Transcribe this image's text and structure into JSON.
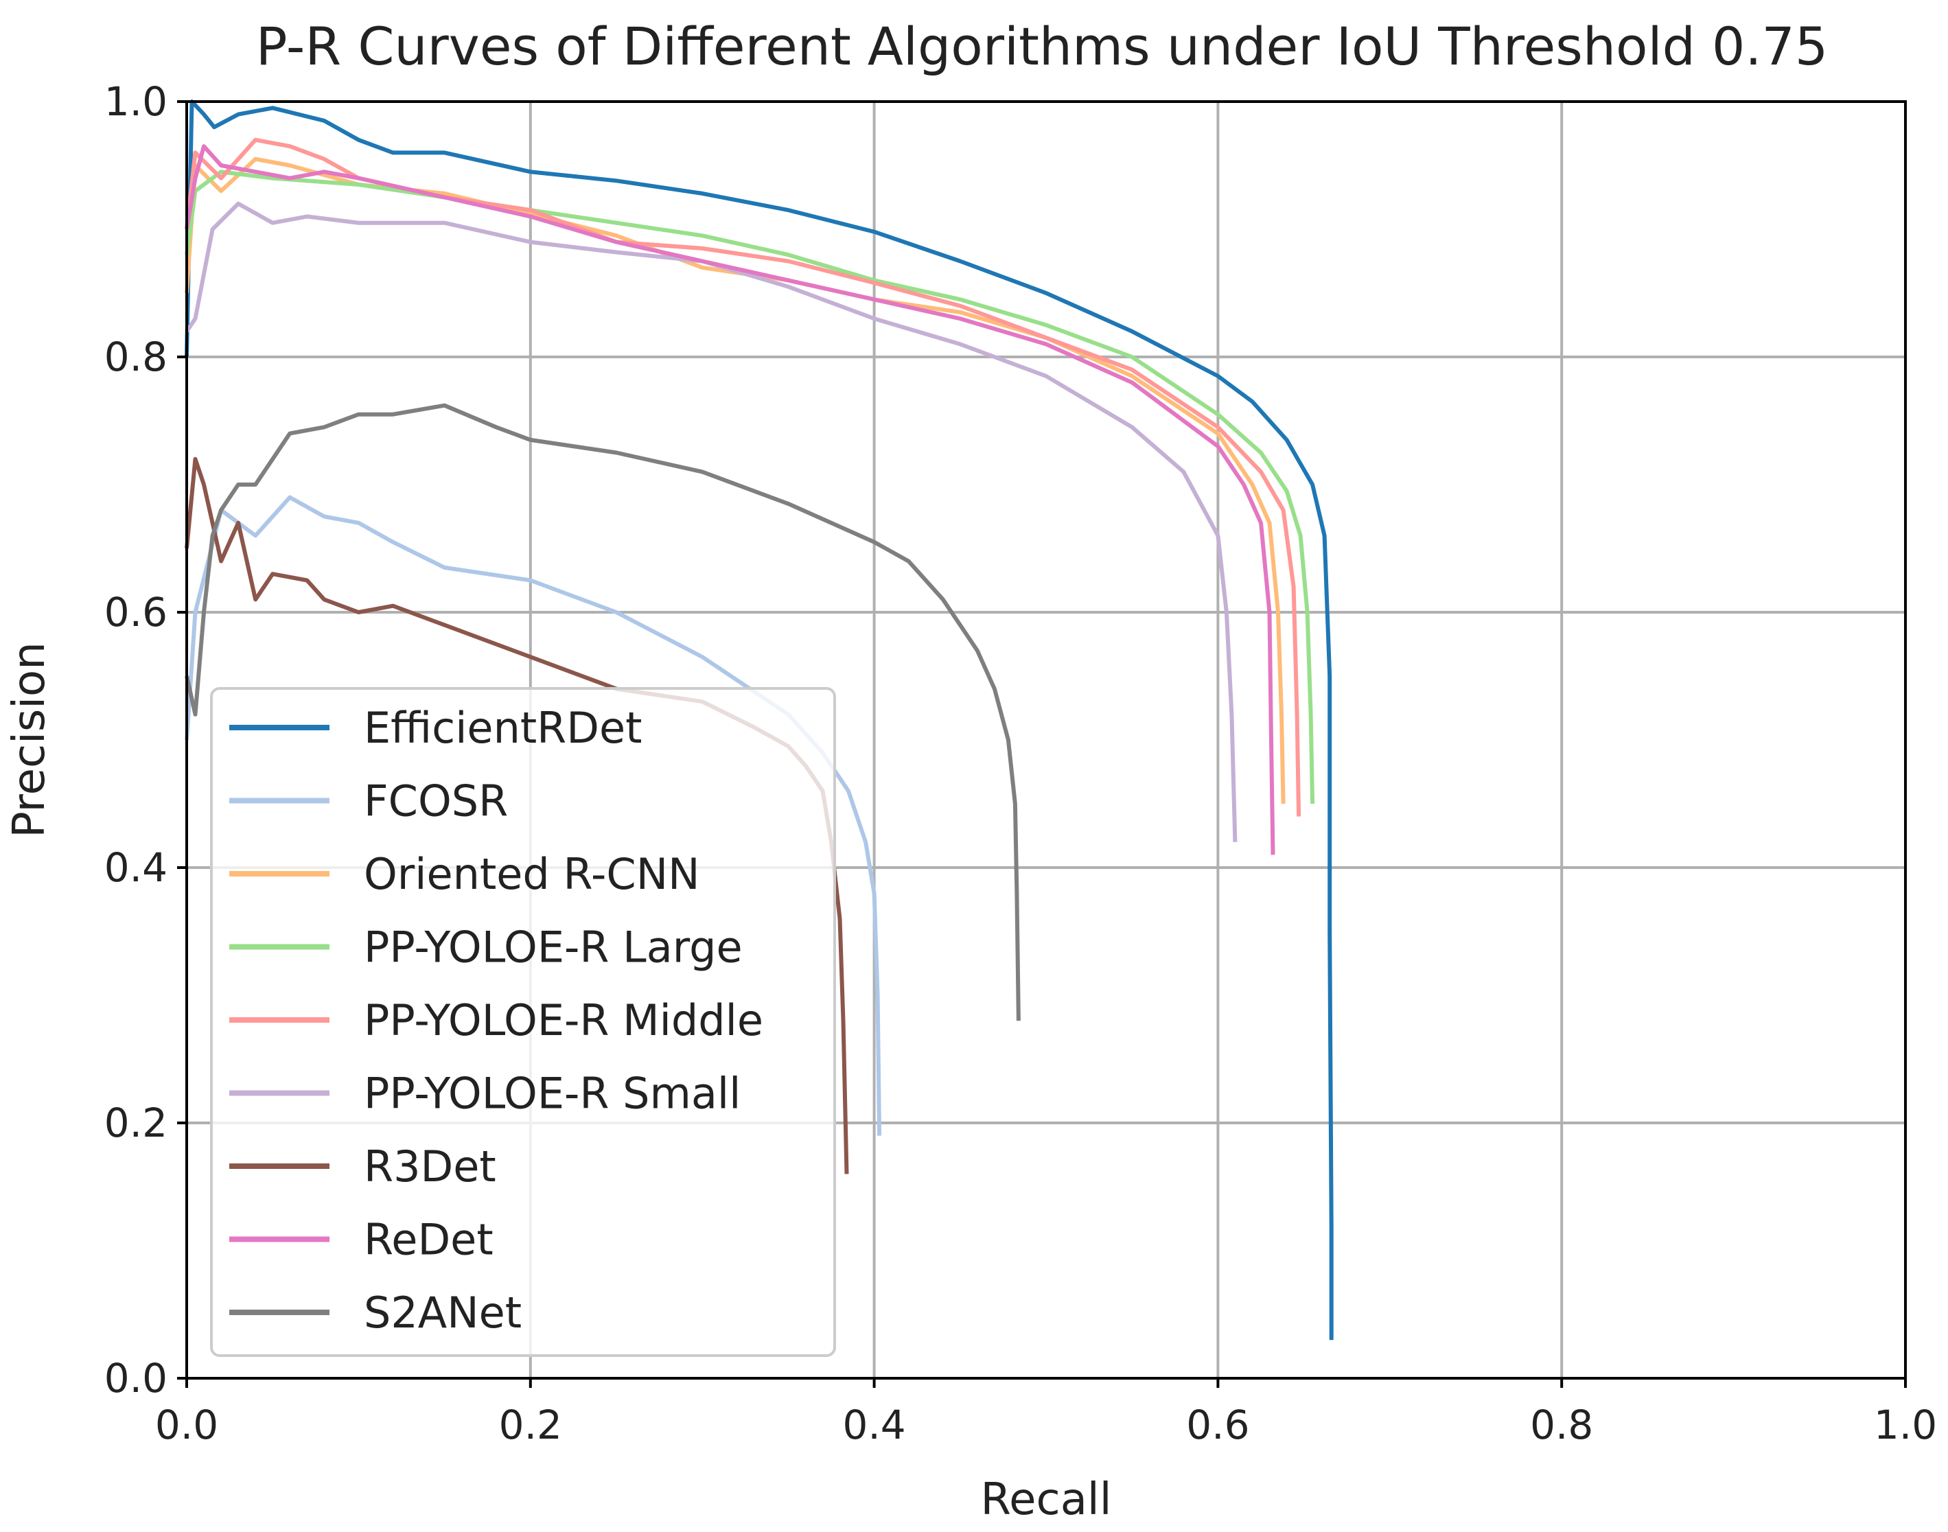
{
  "chart_data": {
    "type": "line",
    "title": "P-R Curves of Different Algorithms under IoU Threshold 0.75",
    "xlabel": "Recall",
    "ylabel": "Precision",
    "xlim": [
      0,
      1
    ],
    "ylim": [
      0,
      1
    ],
    "xticks": [
      "0.0",
      "0.2",
      "0.4",
      "0.6",
      "0.8",
      "1.0"
    ],
    "yticks": [
      "0.0",
      "0.2",
      "0.4",
      "0.6",
      "0.8",
      "1.0"
    ],
    "grid": true,
    "legend_position": "lower-left",
    "series": [
      {
        "name": "EfficientRDet",
        "color": "#1f77b4",
        "points": [
          [
            0.0,
            0.8
          ],
          [
            0.003,
            1.0
          ],
          [
            0.01,
            0.99
          ],
          [
            0.016,
            0.98
          ],
          [
            0.03,
            0.99
          ],
          [
            0.05,
            0.995
          ],
          [
            0.08,
            0.985
          ],
          [
            0.1,
            0.97
          ],
          [
            0.12,
            0.96
          ],
          [
            0.15,
            0.96
          ],
          [
            0.2,
            0.945
          ],
          [
            0.25,
            0.938
          ],
          [
            0.3,
            0.928
          ],
          [
            0.35,
            0.915
          ],
          [
            0.4,
            0.898
          ],
          [
            0.45,
            0.875
          ],
          [
            0.5,
            0.85
          ],
          [
            0.55,
            0.82
          ],
          [
            0.6,
            0.785
          ],
          [
            0.62,
            0.765
          ],
          [
            0.64,
            0.735
          ],
          [
            0.655,
            0.7
          ],
          [
            0.662,
            0.66
          ],
          [
            0.665,
            0.55
          ],
          [
            0.665,
            0.35
          ],
          [
            0.666,
            0.12
          ],
          [
            0.666,
            0.03
          ]
        ]
      },
      {
        "name": "FCOSR",
        "color": "#aec7e8",
        "points": [
          [
            0.0,
            0.5
          ],
          [
            0.005,
            0.6
          ],
          [
            0.02,
            0.68
          ],
          [
            0.04,
            0.66
          ],
          [
            0.06,
            0.69
          ],
          [
            0.08,
            0.675
          ],
          [
            0.1,
            0.67
          ],
          [
            0.12,
            0.655
          ],
          [
            0.15,
            0.635
          ],
          [
            0.2,
            0.625
          ],
          [
            0.25,
            0.6
          ],
          [
            0.3,
            0.565
          ],
          [
            0.35,
            0.52
          ],
          [
            0.37,
            0.49
          ],
          [
            0.385,
            0.46
          ],
          [
            0.395,
            0.42
          ],
          [
            0.4,
            0.38
          ],
          [
            0.402,
            0.3
          ],
          [
            0.403,
            0.19
          ]
        ]
      },
      {
        "name": "Oriented R-CNN",
        "color": "#ffbb78",
        "points": [
          [
            0.0,
            0.85
          ],
          [
            0.005,
            0.95
          ],
          [
            0.02,
            0.93
          ],
          [
            0.04,
            0.955
          ],
          [
            0.06,
            0.95
          ],
          [
            0.1,
            0.935
          ],
          [
            0.15,
            0.928
          ],
          [
            0.2,
            0.912
          ],
          [
            0.25,
            0.895
          ],
          [
            0.3,
            0.87
          ],
          [
            0.35,
            0.86
          ],
          [
            0.4,
            0.845
          ],
          [
            0.45,
            0.835
          ],
          [
            0.5,
            0.815
          ],
          [
            0.55,
            0.785
          ],
          [
            0.6,
            0.74
          ],
          [
            0.62,
            0.7
          ],
          [
            0.63,
            0.67
          ],
          [
            0.635,
            0.6
          ],
          [
            0.637,
            0.52
          ],
          [
            0.638,
            0.45
          ]
        ]
      },
      {
        "name": "PP-YOLOE-R Large",
        "color": "#98df8a",
        "points": [
          [
            0.0,
            0.88
          ],
          [
            0.005,
            0.93
          ],
          [
            0.02,
            0.945
          ],
          [
            0.05,
            0.94
          ],
          [
            0.1,
            0.935
          ],
          [
            0.15,
            0.925
          ],
          [
            0.2,
            0.915
          ],
          [
            0.25,
            0.905
          ],
          [
            0.3,
            0.895
          ],
          [
            0.35,
            0.88
          ],
          [
            0.4,
            0.86
          ],
          [
            0.45,
            0.845
          ],
          [
            0.5,
            0.825
          ],
          [
            0.55,
            0.8
          ],
          [
            0.6,
            0.755
          ],
          [
            0.625,
            0.725
          ],
          [
            0.64,
            0.695
          ],
          [
            0.648,
            0.66
          ],
          [
            0.652,
            0.6
          ],
          [
            0.654,
            0.52
          ],
          [
            0.655,
            0.45
          ]
        ]
      },
      {
        "name": "PP-YOLOE-R Middle",
        "color": "#ff9896",
        "points": [
          [
            0.0,
            0.9
          ],
          [
            0.005,
            0.96
          ],
          [
            0.02,
            0.94
          ],
          [
            0.04,
            0.97
          ],
          [
            0.06,
            0.965
          ],
          [
            0.08,
            0.955
          ],
          [
            0.1,
            0.94
          ],
          [
            0.15,
            0.925
          ],
          [
            0.2,
            0.915
          ],
          [
            0.25,
            0.89
          ],
          [
            0.3,
            0.885
          ],
          [
            0.35,
            0.875
          ],
          [
            0.4,
            0.858
          ],
          [
            0.45,
            0.84
          ],
          [
            0.5,
            0.815
          ],
          [
            0.55,
            0.79
          ],
          [
            0.6,
            0.745
          ],
          [
            0.625,
            0.71
          ],
          [
            0.638,
            0.68
          ],
          [
            0.644,
            0.62
          ],
          [
            0.646,
            0.52
          ],
          [
            0.647,
            0.44
          ]
        ]
      },
      {
        "name": "PP-YOLOE-R Small",
        "color": "#c5b0d5",
        "points": [
          [
            0.0,
            0.82
          ],
          [
            0.005,
            0.83
          ],
          [
            0.015,
            0.9
          ],
          [
            0.03,
            0.92
          ],
          [
            0.05,
            0.905
          ],
          [
            0.07,
            0.91
          ],
          [
            0.1,
            0.905
          ],
          [
            0.15,
            0.905
          ],
          [
            0.2,
            0.89
          ],
          [
            0.25,
            0.882
          ],
          [
            0.3,
            0.875
          ],
          [
            0.35,
            0.855
          ],
          [
            0.4,
            0.83
          ],
          [
            0.45,
            0.81
          ],
          [
            0.5,
            0.785
          ],
          [
            0.55,
            0.745
          ],
          [
            0.58,
            0.71
          ],
          [
            0.6,
            0.66
          ],
          [
            0.605,
            0.6
          ],
          [
            0.608,
            0.52
          ],
          [
            0.61,
            0.42
          ]
        ]
      },
      {
        "name": "R3Det",
        "color": "#8c564b",
        "points": [
          [
            0.0,
            0.65
          ],
          [
            0.005,
            0.72
          ],
          [
            0.01,
            0.7
          ],
          [
            0.02,
            0.64
          ],
          [
            0.03,
            0.67
          ],
          [
            0.04,
            0.61
          ],
          [
            0.05,
            0.63
          ],
          [
            0.07,
            0.625
          ],
          [
            0.08,
            0.61
          ],
          [
            0.1,
            0.6
          ],
          [
            0.12,
            0.605
          ],
          [
            0.15,
            0.59
          ],
          [
            0.2,
            0.565
          ],
          [
            0.22,
            0.555
          ],
          [
            0.25,
            0.54
          ],
          [
            0.3,
            0.53
          ],
          [
            0.33,
            0.51
          ],
          [
            0.35,
            0.495
          ],
          [
            0.36,
            0.48
          ],
          [
            0.37,
            0.46
          ],
          [
            0.375,
            0.42
          ],
          [
            0.38,
            0.36
          ],
          [
            0.382,
            0.28
          ],
          [
            0.384,
            0.16
          ]
        ]
      },
      {
        "name": "ReDet",
        "color": "#e377c2",
        "points": [
          [
            0.0,
            0.9
          ],
          [
            0.005,
            0.94
          ],
          [
            0.01,
            0.965
          ],
          [
            0.02,
            0.95
          ],
          [
            0.04,
            0.945
          ],
          [
            0.06,
            0.94
          ],
          [
            0.08,
            0.945
          ],
          [
            0.1,
            0.94
          ],
          [
            0.15,
            0.925
          ],
          [
            0.2,
            0.91
          ],
          [
            0.25,
            0.89
          ],
          [
            0.3,
            0.875
          ],
          [
            0.35,
            0.86
          ],
          [
            0.4,
            0.845
          ],
          [
            0.45,
            0.83
          ],
          [
            0.5,
            0.81
          ],
          [
            0.55,
            0.78
          ],
          [
            0.6,
            0.73
          ],
          [
            0.615,
            0.7
          ],
          [
            0.625,
            0.67
          ],
          [
            0.63,
            0.6
          ],
          [
            0.631,
            0.5
          ],
          [
            0.632,
            0.41
          ]
        ]
      },
      {
        "name": "S2ANet",
        "color": "#7f7f7f",
        "points": [
          [
            0.0,
            0.55
          ],
          [
            0.005,
            0.52
          ],
          [
            0.01,
            0.6
          ],
          [
            0.015,
            0.66
          ],
          [
            0.02,
            0.68
          ],
          [
            0.03,
            0.7
          ],
          [
            0.04,
            0.7
          ],
          [
            0.05,
            0.72
          ],
          [
            0.06,
            0.74
          ],
          [
            0.08,
            0.745
          ],
          [
            0.1,
            0.755
          ],
          [
            0.12,
            0.755
          ],
          [
            0.15,
            0.762
          ],
          [
            0.18,
            0.745
          ],
          [
            0.2,
            0.735
          ],
          [
            0.25,
            0.725
          ],
          [
            0.3,
            0.71
          ],
          [
            0.35,
            0.685
          ],
          [
            0.4,
            0.655
          ],
          [
            0.42,
            0.64
          ],
          [
            0.44,
            0.61
          ],
          [
            0.46,
            0.57
          ],
          [
            0.47,
            0.54
          ],
          [
            0.478,
            0.5
          ],
          [
            0.482,
            0.45
          ],
          [
            0.483,
            0.38
          ],
          [
            0.484,
            0.28
          ]
        ]
      }
    ]
  }
}
